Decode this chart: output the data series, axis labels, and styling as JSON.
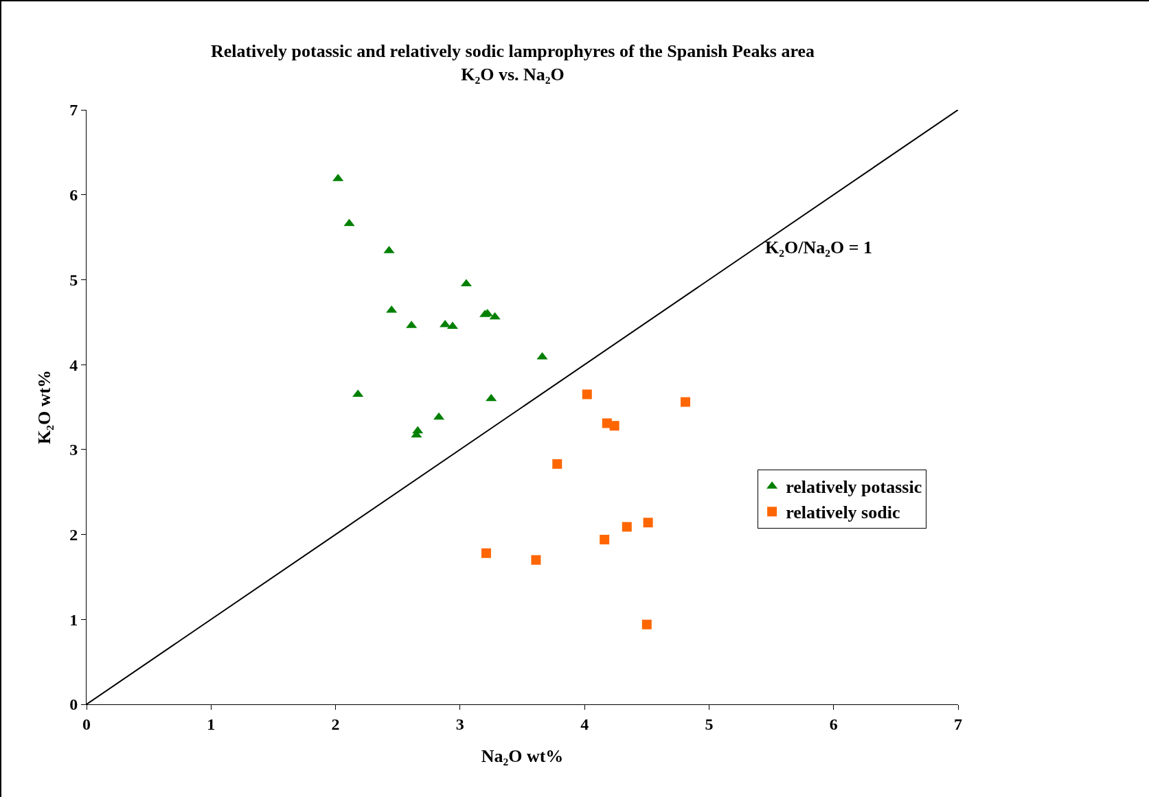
{
  "chart_data": {
    "type": "scatter",
    "title": "Relatively potassic and relatively sodic lamprophyres of the Spanish Peaks area",
    "subtitle": "K₂O vs. Na₂O",
    "xlabel": "Na₂O wt%",
    "ylabel": "K₂O wt%",
    "xlim": [
      0,
      7
    ],
    "ylim": [
      0,
      7
    ],
    "xticks": [
      0,
      1,
      2,
      3,
      4,
      5,
      6,
      7
    ],
    "yticks": [
      0,
      1,
      2,
      3,
      4,
      5,
      6,
      7
    ],
    "grid": false,
    "legend": "right",
    "series": [
      {
        "name": "relatively potassic",
        "color": "#008000",
        "marker": "triangle",
        "x": [
          2.02,
          2.11,
          2.43,
          3.05,
          2.45,
          2.61,
          2.88,
          2.94,
          3.2,
          3.22,
          3.28,
          3.66,
          2.18,
          3.25,
          2.83,
          2.66,
          2.65
        ],
        "values": [
          6.19,
          5.66,
          5.34,
          4.95,
          4.64,
          4.46,
          4.47,
          4.45,
          4.59,
          4.6,
          4.56,
          4.09,
          3.65,
          3.6,
          3.38,
          3.22,
          3.17
        ]
      },
      {
        "name": "relatively sodic",
        "color": "#ff6600",
        "marker": "square",
        "x": [
          4.02,
          4.81,
          4.18,
          4.24,
          3.78,
          4.51,
          4.34,
          4.16,
          3.21,
          3.61,
          4.5
        ],
        "values": [
          3.65,
          3.56,
          3.31,
          3.28,
          2.83,
          2.14,
          2.09,
          1.94,
          1.78,
          1.7,
          0.94
        ]
      },
      {
        "type": "line",
        "color": "#000000",
        "line_style": "solid",
        "marker": "none",
        "x": [
          0,
          7
        ],
        "values": [
          0,
          7
        ]
      }
    ],
    "annotations": [
      "K₂O/Na₂O = 1"
    ]
  }
}
